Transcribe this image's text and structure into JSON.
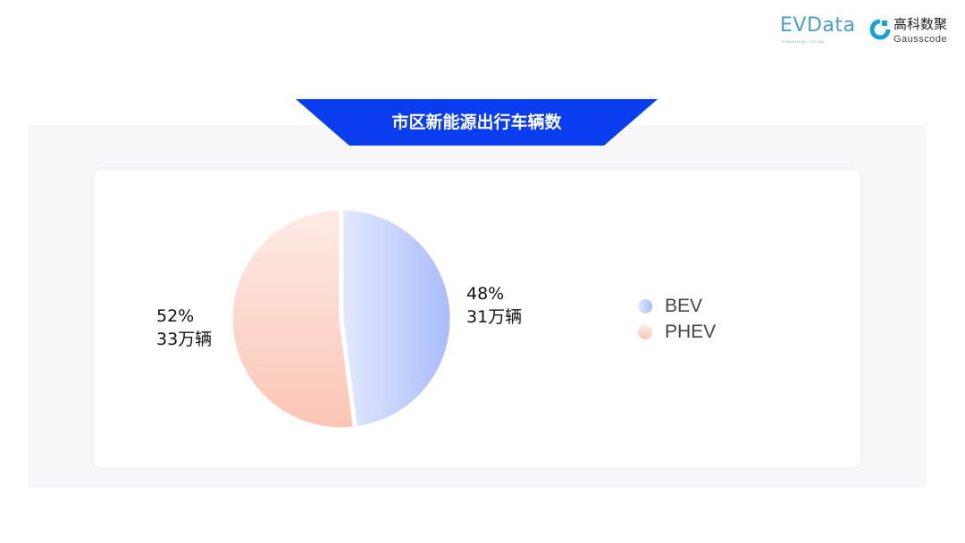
{
  "logos": {
    "evdata": "EVData",
    "evdata_sub": "SHANGHAI CHINA",
    "gauss_cn": "高科数聚",
    "gauss_en": "Gausscode"
  },
  "colors": {
    "banner": "#0a3cf0",
    "bev_start": "#e3e9fd",
    "bev_end": "#a9bcfb",
    "phev_start": "#fdebe5",
    "phev_end": "#fcc5b5",
    "panel": "#f7f6f8"
  },
  "chart_data": {
    "type": "pie",
    "title": "市区新能源出行车辆数",
    "slices": [
      {
        "name": "BEV",
        "percent": 48,
        "value_label": "31万辆",
        "percent_label": "48%"
      },
      {
        "name": "PHEV",
        "percent": 52,
        "value_label": "33万辆",
        "percent_label": "52%"
      }
    ],
    "legend": {
      "placement": "right",
      "entries": [
        "BEV",
        "PHEV"
      ]
    }
  }
}
